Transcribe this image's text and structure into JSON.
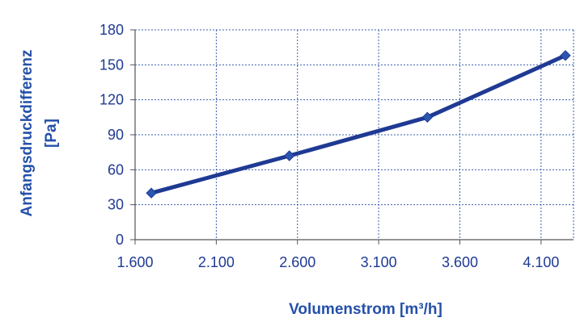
{
  "chart_data": {
    "type": "line",
    "xlabel": "Volumenstrom [m³/h]",
    "ylabel_lines": [
      "Anfangsdruckdifferenz",
      "[Pa]"
    ],
    "x_tick_labels": [
      "1.600",
      "2.100",
      "2.600",
      "3.100",
      "3.600",
      "4.100"
    ],
    "x_ticks": [
      1600,
      2100,
      2600,
      3100,
      3600,
      4100
    ],
    "y_tick_labels": [
      "0",
      "30",
      "60",
      "90",
      "120",
      "150",
      "180"
    ],
    "y_ticks": [
      0,
      30,
      60,
      90,
      120,
      150,
      180
    ],
    "xlim": [
      1600,
      4300
    ],
    "ylim": [
      0,
      180
    ],
    "grid": true,
    "series": [
      {
        "x": [
          1700,
          2550,
          3400,
          4250
        ],
        "y": [
          40,
          72,
          105,
          158
        ]
      }
    ]
  },
  "colors": {
    "line": "#1f3a93",
    "marker": "#2b56b0",
    "axis_text": "#1f3a93",
    "axis_label": "#2450a8",
    "grid": "#3a5fb0"
  }
}
